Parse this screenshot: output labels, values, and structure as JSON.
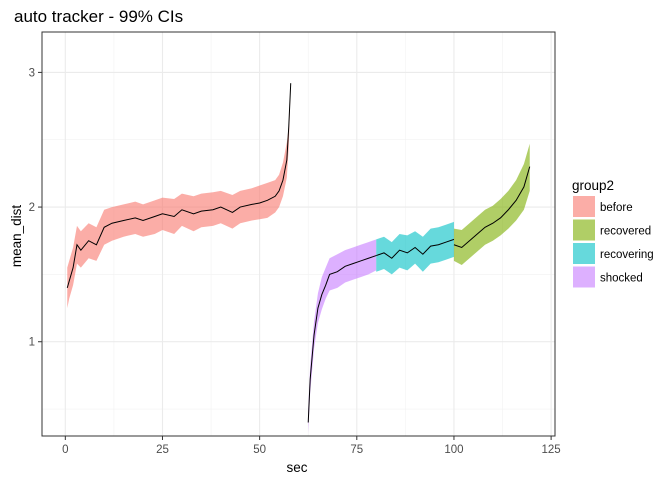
{
  "chart_data": {
    "type": "area",
    "title": "auto tracker - 99% CIs",
    "xlabel": "sec",
    "ylabel": "mean_dist",
    "xlim": [
      -6,
      126
    ],
    "ylim": [
      0.3,
      3.3
    ],
    "x_ticks": [
      0,
      25,
      50,
      75,
      100,
      125
    ],
    "y_ticks": [
      1,
      2,
      3
    ],
    "grid": true,
    "legend": {
      "title": "group2",
      "position": "right"
    },
    "line_color": "#000000",
    "ribbon_opacity": 0.6,
    "series": [
      {
        "name": "before",
        "color": "#F8766D",
        "x": [
          0.5,
          1,
          2,
          3,
          4,
          6,
          8,
          10,
          12,
          15,
          18,
          20,
          23,
          25,
          28,
          30,
          33,
          35,
          38,
          40,
          43,
          45,
          48,
          50,
          52,
          54,
          55,
          56,
          57,
          57.5,
          58
        ],
        "y": [
          1.4,
          1.45,
          1.55,
          1.72,
          1.68,
          1.75,
          1.72,
          1.85,
          1.88,
          1.9,
          1.92,
          1.9,
          1.93,
          1.95,
          1.93,
          1.98,
          1.95,
          1.97,
          1.98,
          2.0,
          1.96,
          2.0,
          2.02,
          2.03,
          2.05,
          2.08,
          2.12,
          2.2,
          2.35,
          2.6,
          2.92
        ],
        "lo": [
          1.25,
          1.32,
          1.42,
          1.58,
          1.55,
          1.62,
          1.6,
          1.72,
          1.75,
          1.78,
          1.8,
          1.78,
          1.8,
          1.83,
          1.8,
          1.86,
          1.82,
          1.85,
          1.86,
          1.88,
          1.84,
          1.88,
          1.9,
          1.91,
          1.92,
          1.96,
          2.0,
          2.08,
          2.22,
          2.45,
          2.92
        ],
        "hi": [
          1.55,
          1.6,
          1.7,
          1.86,
          1.82,
          1.88,
          1.85,
          1.98,
          2.0,
          2.02,
          2.04,
          2.02,
          2.05,
          2.07,
          2.06,
          2.1,
          2.08,
          2.1,
          2.11,
          2.12,
          2.09,
          2.12,
          2.14,
          2.16,
          2.18,
          2.2,
          2.24,
          2.33,
          2.48,
          2.6,
          2.92
        ]
      },
      {
        "name": "shocked",
        "color": "#C77CFF",
        "x": [
          62.5,
          63,
          64,
          65,
          66,
          67,
          68,
          70,
          72,
          74,
          76,
          78,
          80
        ],
        "y": [
          0.4,
          0.72,
          1.05,
          1.25,
          1.35,
          1.42,
          1.5,
          1.52,
          1.56,
          1.58,
          1.6,
          1.62,
          1.64
        ],
        "lo": [
          0.32,
          0.62,
          0.95,
          1.14,
          1.24,
          1.32,
          1.38,
          1.4,
          1.44,
          1.46,
          1.48,
          1.5,
          1.53
        ],
        "hi": [
          0.5,
          0.82,
          1.15,
          1.36,
          1.48,
          1.55,
          1.62,
          1.65,
          1.68,
          1.7,
          1.72,
          1.74,
          1.76
        ]
      },
      {
        "name": "recovering",
        "color": "#00BFC4",
        "x": [
          80,
          82,
          84,
          86,
          88,
          90,
          92,
          94,
          96,
          98,
          100
        ],
        "y": [
          1.64,
          1.66,
          1.62,
          1.68,
          1.66,
          1.7,
          1.65,
          1.71,
          1.72,
          1.74,
          1.76
        ],
        "lo": [
          1.52,
          1.54,
          1.5,
          1.55,
          1.53,
          1.58,
          1.52,
          1.58,
          1.59,
          1.61,
          1.63
        ],
        "hi": [
          1.76,
          1.78,
          1.74,
          1.8,
          1.79,
          1.82,
          1.78,
          1.84,
          1.85,
          1.87,
          1.89
        ]
      },
      {
        "name": "recovered",
        "color": "#7CAE00",
        "x": [
          100,
          102,
          104,
          106,
          108,
          110,
          112,
          114,
          116,
          118,
          119.5
        ],
        "y": [
          1.72,
          1.7,
          1.75,
          1.8,
          1.85,
          1.88,
          1.92,
          1.98,
          2.05,
          2.15,
          2.3
        ],
        "lo": [
          1.6,
          1.57,
          1.62,
          1.67,
          1.72,
          1.75,
          1.79,
          1.84,
          1.9,
          1.98,
          2.12
        ],
        "hi": [
          1.84,
          1.83,
          1.88,
          1.93,
          1.98,
          2.01,
          2.06,
          2.12,
          2.2,
          2.32,
          2.47
        ]
      }
    ],
    "legend_order": [
      "before",
      "recovered",
      "recovering",
      "shocked"
    ]
  }
}
